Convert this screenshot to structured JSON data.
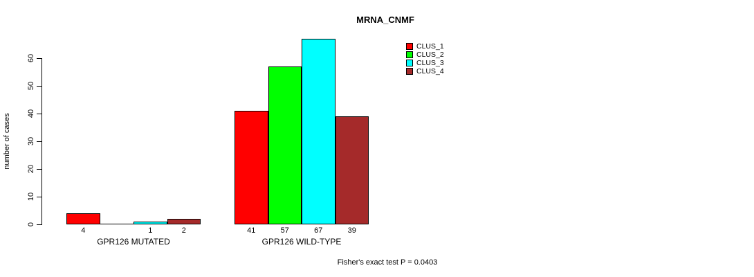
{
  "chart_data": {
    "type": "bar",
    "title": "MRNA_CNMF",
    "ylabel": "number of cases",
    "ylim": [
      0,
      60
    ],
    "yticks": [
      0,
      10,
      20,
      30,
      40,
      50,
      60
    ],
    "grid": false,
    "legend_position": "top-right",
    "categories": [
      "GPR126 MUTATED",
      "GPR126 WILD-TYPE"
    ],
    "series": [
      {
        "name": "CLUS_1",
        "color": "#FF0000",
        "values": [
          4,
          41
        ]
      },
      {
        "name": "CLUS_2",
        "color": "#00FF00",
        "values": [
          0,
          57
        ]
      },
      {
        "name": "CLUS_3",
        "color": "#00FFFF",
        "values": [
          1,
          67
        ]
      },
      {
        "name": "CLUS_4",
        "color": "#A52A2A",
        "values": [
          2,
          39
        ]
      }
    ],
    "groups": [
      {
        "label": "GPR126 MUTATED",
        "values": [
          4,
          0,
          1,
          2
        ],
        "bar_labels": [
          "4",
          "",
          "1",
          "2"
        ]
      },
      {
        "label": "GPR126 WILD-TYPE",
        "values": [
          41,
          57,
          67,
          39
        ],
        "bar_labels": [
          "41",
          "57",
          "67",
          "39"
        ]
      }
    ],
    "footnote": "Fisher's exact test P = 0.0403"
  }
}
